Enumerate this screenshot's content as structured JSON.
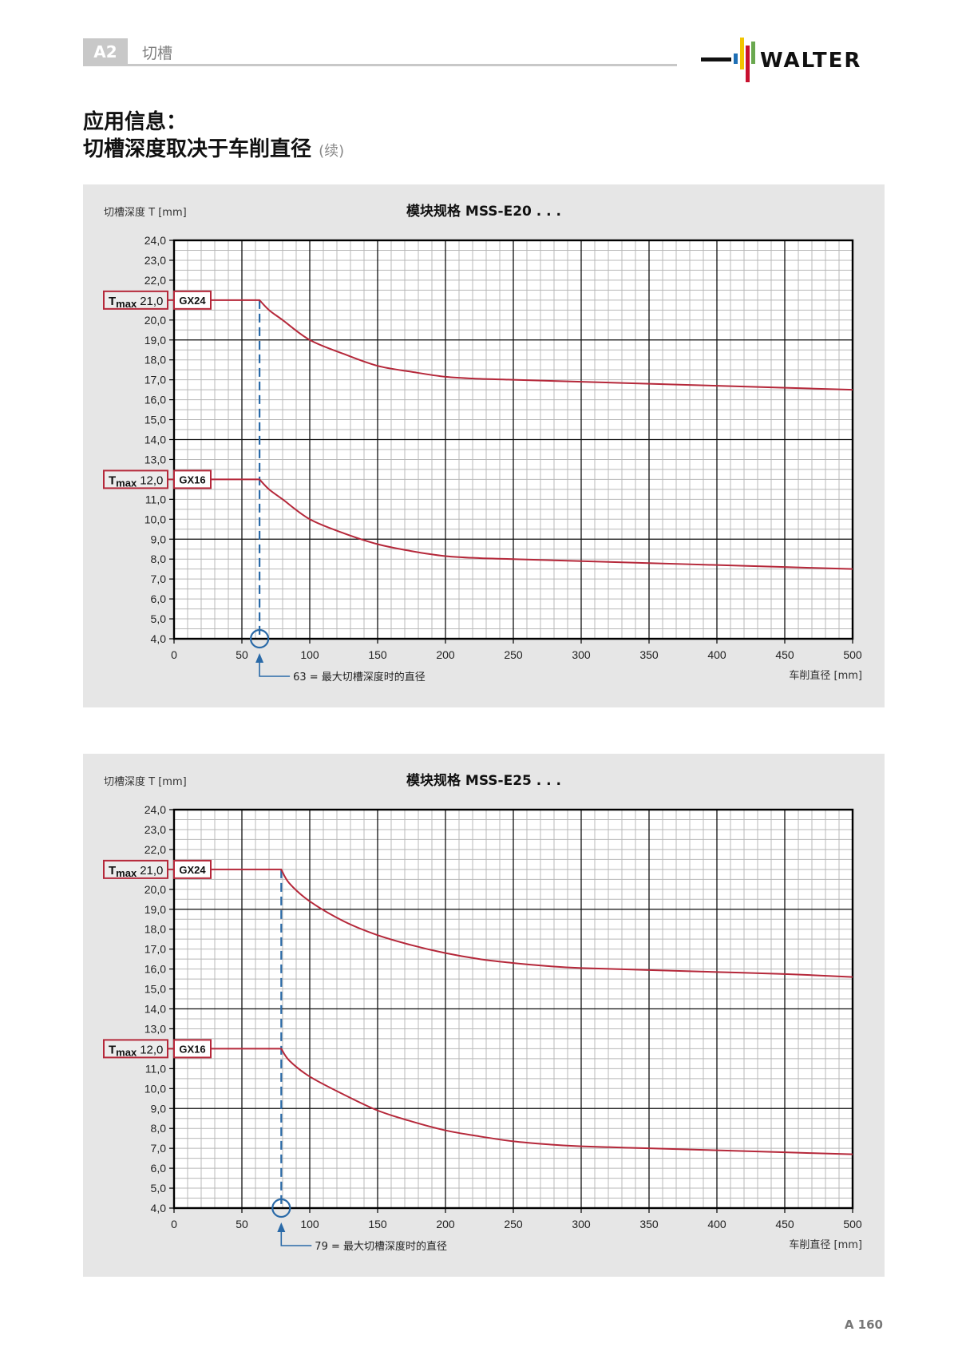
{
  "header": {
    "section_code": "A2",
    "section_name": "切槽",
    "brand": "WALTER",
    "brand_colors": [
      "#1e6fb5",
      "#f2c500",
      "#c8102e",
      "#6aa84f",
      "#111111"
    ]
  },
  "title": {
    "line1": "应用信息：",
    "line2": "切槽深度取决于车削直径",
    "continued": "(续)"
  },
  "page_number": "A 160",
  "colors": {
    "curve": "#b5283a",
    "marker": "#2a6aa8",
    "panel_bg": "#e6e6e6",
    "grid_major": "#111111",
    "grid_minor": "#b8b8b8"
  },
  "chart_data": [
    {
      "type": "line",
      "title": "模块规格 MSS-E20 . . .",
      "ylabel": "切槽深度 T [mm]",
      "xlabel": "车削直径 [mm]",
      "xlim": [
        0,
        500
      ],
      "ylim": [
        4,
        24
      ],
      "x_ticks": [
        "0",
        "50",
        "100",
        "150",
        "200",
        "250",
        "300",
        "350",
        "400",
        "450",
        "500"
      ],
      "y_ticks": [
        "4,0",
        "5,0",
        "6,0",
        "7,0",
        "8,0",
        "9,0",
        "10,0",
        "11,0",
        "12,0",
        "13,0",
        "14,0",
        "15,0",
        "16,0",
        "17,0",
        "18,0",
        "19,0",
        "20,0",
        "21,0",
        "22,0",
        "23,0",
        "24,0"
      ],
      "grid": true,
      "marker": {
        "x": 63,
        "label": "63 = 最大切槽深度时的直径"
      },
      "series": [
        {
          "name": "GX24",
          "tmax_label": "Tmax",
          "tmax_value": "21,0",
          "x": [
            0,
            63,
            70,
            80,
            100,
            125,
            150,
            175,
            200,
            225,
            250,
            300,
            350,
            400,
            450,
            500
          ],
          "y": [
            21.0,
            21.0,
            20.5,
            20.0,
            19.0,
            18.3,
            17.7,
            17.4,
            17.15,
            17.05,
            17.0,
            16.9,
            16.8,
            16.7,
            16.6,
            16.5
          ]
        },
        {
          "name": "GX16",
          "tmax_label": "Tmax",
          "tmax_value": "12,0",
          "x": [
            0,
            63,
            70,
            80,
            100,
            125,
            150,
            175,
            200,
            225,
            250,
            300,
            350,
            400,
            450,
            500
          ],
          "y": [
            12.0,
            12.0,
            11.5,
            11.0,
            10.0,
            9.3,
            8.75,
            8.4,
            8.15,
            8.05,
            8.0,
            7.9,
            7.8,
            7.7,
            7.6,
            7.5
          ]
        }
      ]
    },
    {
      "type": "line",
      "title": "模块规格 MSS-E25 . . .",
      "ylabel": "切槽深度 T [mm]",
      "xlabel": "车削直径 [mm]",
      "xlim": [
        0,
        500
      ],
      "ylim": [
        4,
        24
      ],
      "x_ticks": [
        "0",
        "50",
        "100",
        "150",
        "200",
        "250",
        "300",
        "350",
        "400",
        "450",
        "500"
      ],
      "y_ticks": [
        "4,0",
        "5,0",
        "6,0",
        "7,0",
        "8,0",
        "9,0",
        "10,0",
        "11,0",
        "12,0",
        "13,0",
        "14,0",
        "15,0",
        "16,0",
        "17,0",
        "18,0",
        "19,0",
        "20,0",
        "21,0",
        "22,0",
        "23,0",
        "24,0"
      ],
      "grid": true,
      "marker": {
        "x": 79,
        "label": "79 = 最大切槽深度时的直径"
      },
      "series": [
        {
          "name": "GX24",
          "tmax_label": "Tmax",
          "tmax_value": "21,0",
          "x": [
            0,
            79,
            85,
            100,
            125,
            150,
            175,
            200,
            225,
            250,
            275,
            300,
            350,
            400,
            450,
            500
          ],
          "y": [
            21.0,
            21.0,
            20.3,
            19.4,
            18.4,
            17.7,
            17.2,
            16.8,
            16.5,
            16.3,
            16.15,
            16.05,
            15.95,
            15.85,
            15.75,
            15.6
          ]
        },
        {
          "name": "GX16",
          "tmax_label": "Tmax",
          "tmax_value": "12,0",
          "x": [
            0,
            79,
            85,
            100,
            125,
            150,
            175,
            200,
            225,
            250,
            275,
            300,
            350,
            400,
            450,
            500
          ],
          "y": [
            12.0,
            12.0,
            11.4,
            10.6,
            9.7,
            8.9,
            8.35,
            7.9,
            7.6,
            7.35,
            7.2,
            7.1,
            7.0,
            6.9,
            6.8,
            6.7
          ]
        }
      ]
    }
  ]
}
